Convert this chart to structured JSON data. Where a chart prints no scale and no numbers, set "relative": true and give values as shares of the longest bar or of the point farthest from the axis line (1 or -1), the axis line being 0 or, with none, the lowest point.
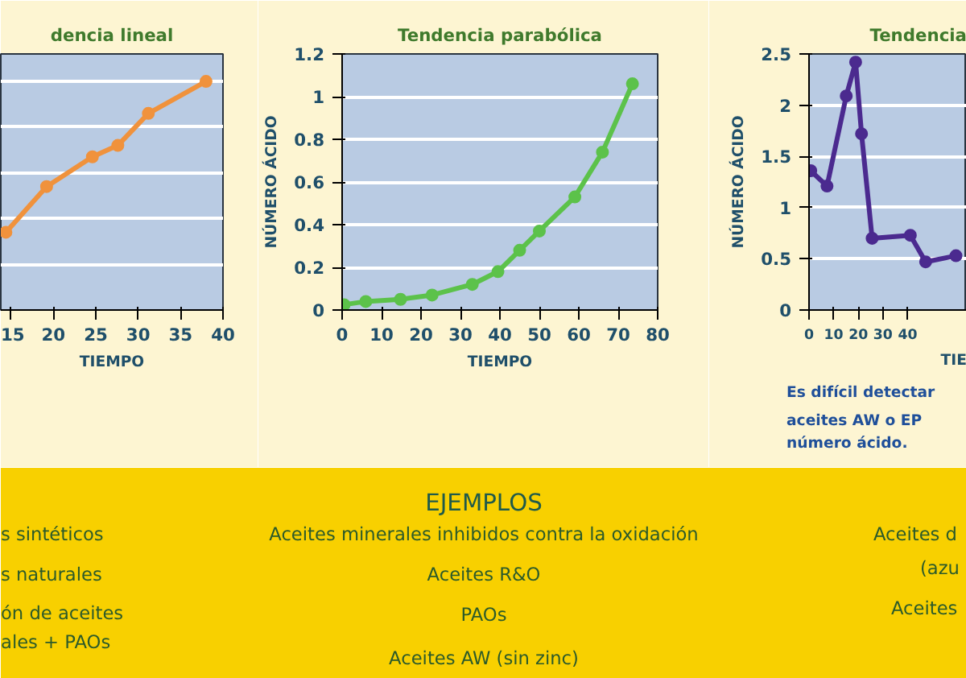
{
  "chart_data": [
    {
      "type": "line",
      "title": "dencia lineal",
      "xlabel": "TIEMPO",
      "relative": true,
      "x": [
        14.4,
        19.2,
        24.6,
        27.6,
        31.2,
        38.0
      ],
      "series": [
        {
          "color": "#f0923c",
          "values": [
            0.34,
            0.54,
            0.67,
            0.72,
            0.86,
            1
          ]
        }
      ],
      "xlim": [
        13.8,
        40
      ],
      "xticks": [
        15,
        20,
        25,
        30,
        35,
        40
      ],
      "grid": "y",
      "marker": "circle",
      "tick_labels": "x"
    },
    {
      "type": "line",
      "title": "Tendencia parabólica",
      "xlabel": "TIEMPO",
      "ylabel": "NÚMERO ÁCIDO",
      "x": [
        0.5,
        6,
        14.8,
        22.8,
        33,
        39.5,
        45,
        50,
        59,
        66,
        73.6
      ],
      "series": [
        {
          "color": "#5cc24a",
          "values": [
            0.025,
            0.04,
            0.05,
            0.07,
            0.12,
            0.18,
            0.28,
            0.37,
            0.53,
            0.74,
            1.06
          ]
        }
      ],
      "xlim": [
        0,
        80
      ],
      "xticks": [
        0,
        10,
        20,
        30,
        40,
        50,
        60,
        70,
        80
      ],
      "ylim": [
        0,
        1.2
      ],
      "yticks": [
        0,
        0.2,
        0.4,
        0.6,
        0.8,
        1,
        1.2
      ],
      "grid": "y",
      "marker": "circle"
    },
    {
      "type": "line",
      "title": "Tendencia",
      "xlabel": "TIE",
      "ylabel": "NÚMERO ÁCIDO",
      "x": [
        0.7,
        7.3,
        15.1,
        18.9,
        21.3,
        25.6,
        41.1,
        47.3,
        59.6
      ],
      "series": [
        {
          "color": "#4b2a8f",
          "values": [
            1.36,
            1.21,
            2.09,
            2.42,
            1.72,
            0.7,
            0.73,
            0.47,
            0.53
          ]
        }
      ],
      "xlim": [
        0,
        64
      ],
      "xticks": [
        0,
        10,
        20,
        30,
        40
      ],
      "ylim": [
        0,
        2.5
      ],
      "yticks": [
        0,
        0.5,
        1,
        1.5,
        2,
        2.5
      ],
      "grid": "y",
      "marker": "circle",
      "annotations": [
        "Es difícil detectar",
        "aceites AW o EP",
        "número ácido."
      ]
    },
    {
      "type": "other",
      "title": "EJEMPLOS",
      "annotations": [
        "s sintéticos",
        "s naturales",
        "ón de aceites",
        "ales + PAOs",
        "Aceites minerales inhibidos contra la oxidación",
        "Aceites R&O",
        "PAOs",
        "Aceites AW (sin zinc)",
        "Aceites d",
        "(azu",
        "Aceites"
      ]
    }
  ]
}
